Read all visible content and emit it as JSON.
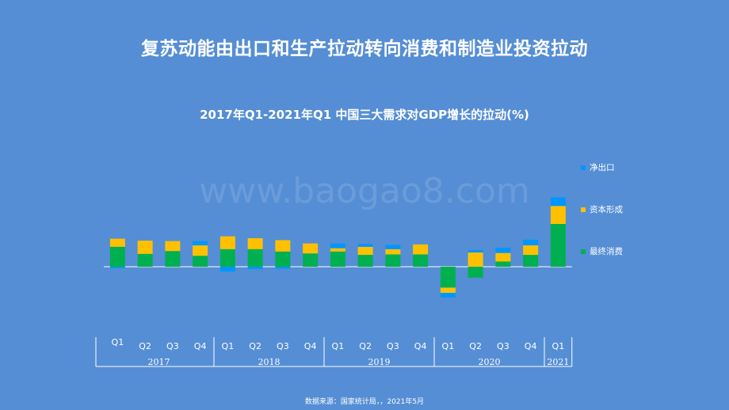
{
  "slide_title": "复苏动能由出口和生产拉动转向消费和制造业投资拉动",
  "watermark": "www.baogao8.com",
  "source": "数据来源：国家统计局，，2021年5月",
  "colors": {
    "consumption": "#00b050",
    "capital": "#ffc000",
    "net_export": "#0096ff",
    "axis": "#ffffff"
  },
  "chart_data": {
    "type": "bar",
    "stacked": true,
    "title": "2017年Q1-2021年Q1 中国三大需求对GDP增长的拉动(%)",
    "categories": [
      "Q1",
      "Q2",
      "Q3",
      "Q4",
      "Q1",
      "Q2",
      "Q3",
      "Q4",
      "Q1",
      "Q2",
      "Q3",
      "Q4",
      "Q1",
      "Q2",
      "Q3",
      "Q4",
      "Q1"
    ],
    "years": [
      {
        "label": "2017",
        "start": 0,
        "end": 3
      },
      {
        "label": "2018",
        "start": 4,
        "end": 7
      },
      {
        "label": "2019",
        "start": 8,
        "end": 11
      },
      {
        "label": "2020",
        "start": 12,
        "end": 15
      },
      {
        "label": "2021",
        "start": 16,
        "end": 16
      }
    ],
    "series": [
      {
        "name": "最终消费",
        "key": "consumption",
        "values": [
          4.2,
          2.7,
          3.3,
          2.3,
          3.7,
          3.7,
          3.2,
          2.8,
          3.2,
          2.5,
          2.6,
          2.6,
          -4.4,
          -2.3,
          1.1,
          2.5,
          9.0
        ]
      },
      {
        "name": "资本形成",
        "key": "capital",
        "values": [
          1.7,
          2.8,
          2.1,
          2.2,
          2.7,
          2.3,
          2.4,
          2.1,
          0.7,
          1.7,
          1.1,
          2.1,
          -1.1,
          3.0,
          1.8,
          2.0,
          3.8
        ]
      },
      {
        "name": "净出口",
        "key": "net_export",
        "values": [
          -0.3,
          0.0,
          0.0,
          0.9,
          -1.0,
          -0.5,
          -0.4,
          0.0,
          1.0,
          0.6,
          0.9,
          0.0,
          -1.0,
          0.5,
          1.1,
          1.2,
          1.8
        ]
      }
    ],
    "legend_position": "right",
    "ylim": [
      -6,
      15
    ],
    "grid": false
  }
}
